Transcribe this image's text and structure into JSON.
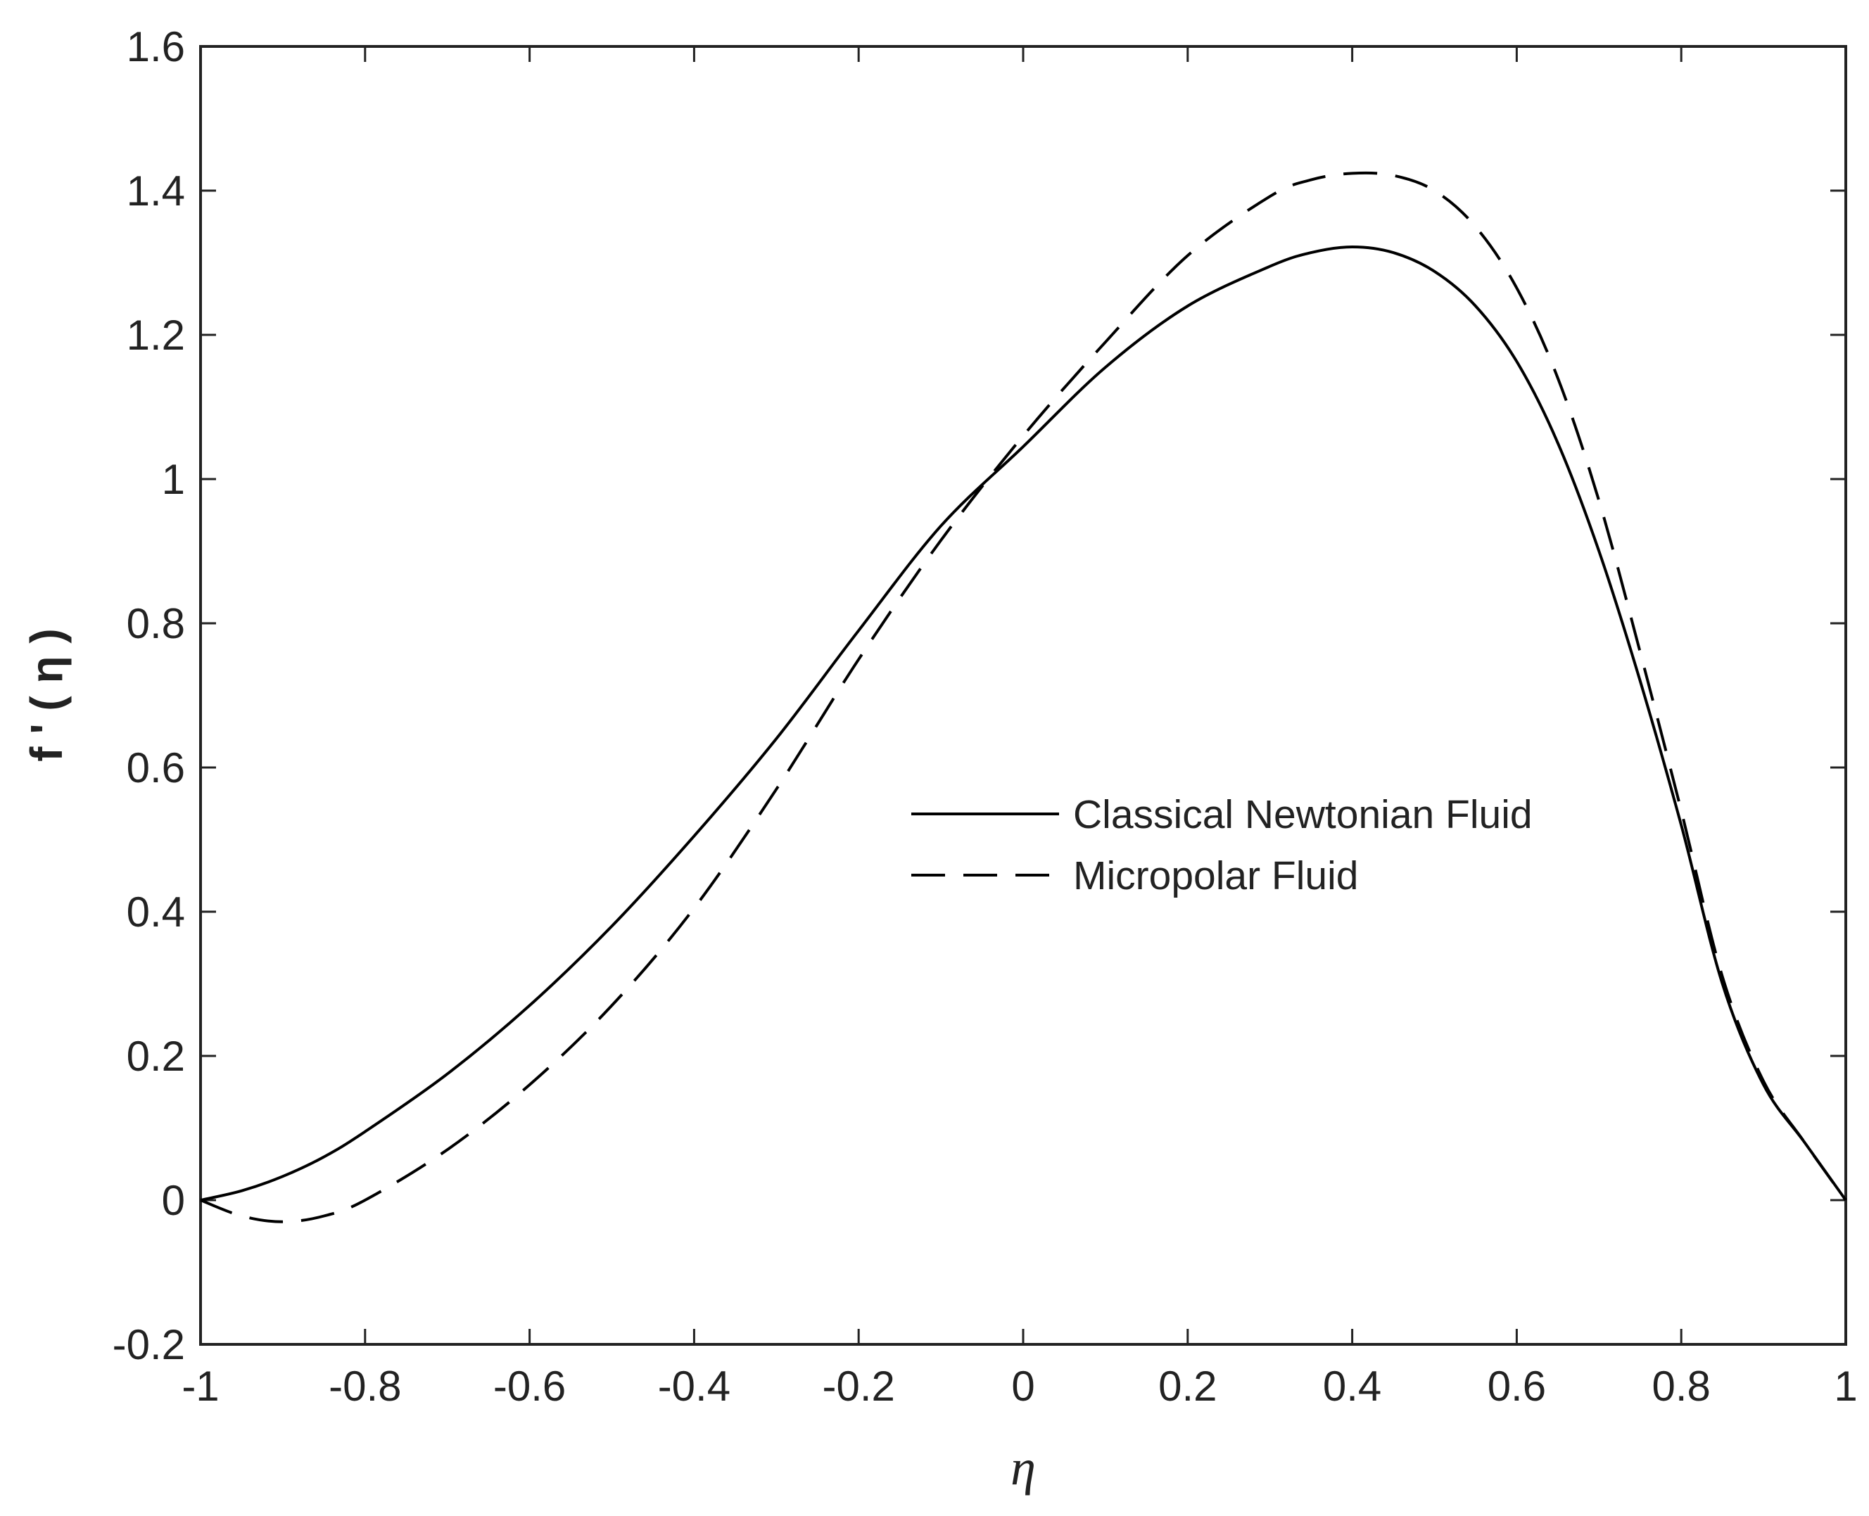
{
  "chart_data": {
    "type": "line",
    "xlabel": "η",
    "ylabel": "f ' ( η )",
    "xlim": [
      -1,
      1
    ],
    "ylim": [
      -0.2,
      1.6
    ],
    "xticks": [
      -1,
      -0.8,
      -0.6,
      -0.4,
      -0.2,
      0,
      0.2,
      0.4,
      0.6,
      0.8,
      1
    ],
    "yticks": [
      -0.2,
      0,
      0.2,
      0.4,
      0.6,
      0.8,
      1,
      1.2,
      1.4,
      1.6
    ],
    "xtick_labels": [
      "-1",
      "-0.8",
      "-0.6",
      "-0.4",
      "-0.2",
      "0",
      "0.2",
      "0.4",
      "0.6",
      "0.8",
      "1"
    ],
    "ytick_labels": [
      "-0.2",
      "0",
      "0.2",
      "0.4",
      "0.6",
      "0.8",
      "1",
      "1.2",
      "1.4",
      "1.6"
    ],
    "grid": false,
    "box": true,
    "legend_position": "center-right",
    "colors": {
      "lines": "#000000",
      "axes": "#222222",
      "background": "#ffffff"
    },
    "series": [
      {
        "name": "Classical Newtonian Fluid",
        "style": "solid",
        "x": [
          -1,
          -0.95,
          -0.9,
          -0.85,
          -0.8,
          -0.7,
          -0.6,
          -0.5,
          -0.4,
          -0.3,
          -0.2,
          -0.1,
          0,
          0.1,
          0.2,
          0.3,
          0.35,
          0.4,
          0.45,
          0.5,
          0.55,
          0.6,
          0.65,
          0.7,
          0.75,
          0.8,
          0.85,
          0.9,
          0.95,
          1
        ],
        "y": [
          0,
          0.013,
          0.033,
          0.06,
          0.095,
          0.175,
          0.27,
          0.38,
          0.505,
          0.64,
          0.79,
          0.935,
          1.045,
          1.155,
          1.24,
          1.295,
          1.314,
          1.322,
          1.314,
          1.288,
          1.24,
          1.163,
          1.05,
          0.9,
          0.72,
          0.52,
          0.3,
          0.16,
          0.08,
          0
        ]
      },
      {
        "name": "Micropolar Fluid",
        "style": "dashed",
        "x": [
          -1,
          -0.95,
          -0.9,
          -0.85,
          -0.8,
          -0.7,
          -0.6,
          -0.5,
          -0.4,
          -0.3,
          -0.2,
          -0.1,
          0,
          0.1,
          0.2,
          0.3,
          0.35,
          0.4,
          0.45,
          0.5,
          0.55,
          0.6,
          0.65,
          0.7,
          0.75,
          0.8,
          0.85,
          0.9,
          0.95,
          1
        ],
        "y": [
          0,
          -0.022,
          -0.03,
          -0.022,
          0.0,
          0.07,
          0.16,
          0.27,
          0.405,
          0.57,
          0.75,
          0.915,
          1.06,
          1.19,
          1.31,
          1.392,
          1.415,
          1.424,
          1.421,
          1.4,
          1.35,
          1.265,
          1.14,
          0.97,
          0.76,
          0.54,
          0.31,
          0.165,
          0.08,
          0
        ]
      }
    ]
  }
}
